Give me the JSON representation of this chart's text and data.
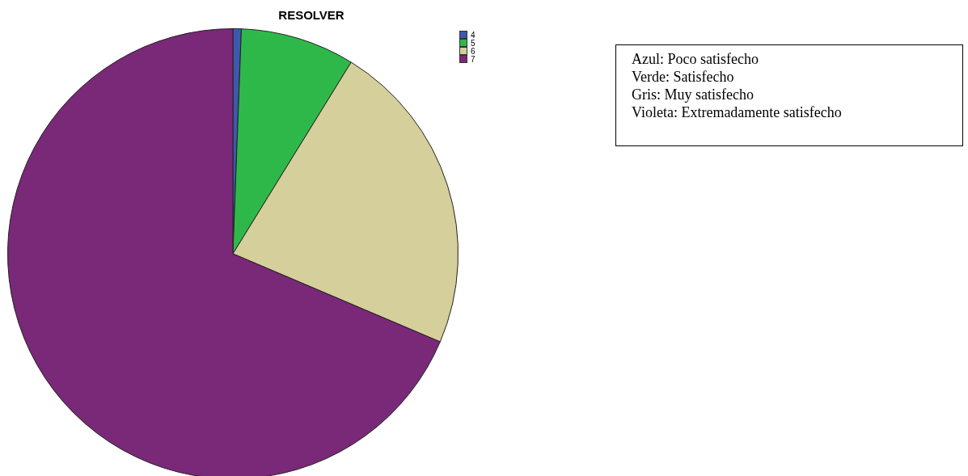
{
  "chart_data": {
    "type": "pie",
    "title": "RESOLVER",
    "categories": [
      "4",
      "5",
      "6",
      "7"
    ],
    "values": [
      0.6,
      8.2,
      22.6,
      68.6
    ],
    "colors": [
      "#3e58ac",
      "#2fb84a",
      "#d4cf9b",
      "#7a2878"
    ],
    "legend": "top right",
    "annotations": [
      "Azul: Poco satisfecho",
      "Verde: Satisfecho",
      "Gris: Muy satisfecho",
      "Violeta: Extremadamente satisfecho"
    ]
  }
}
